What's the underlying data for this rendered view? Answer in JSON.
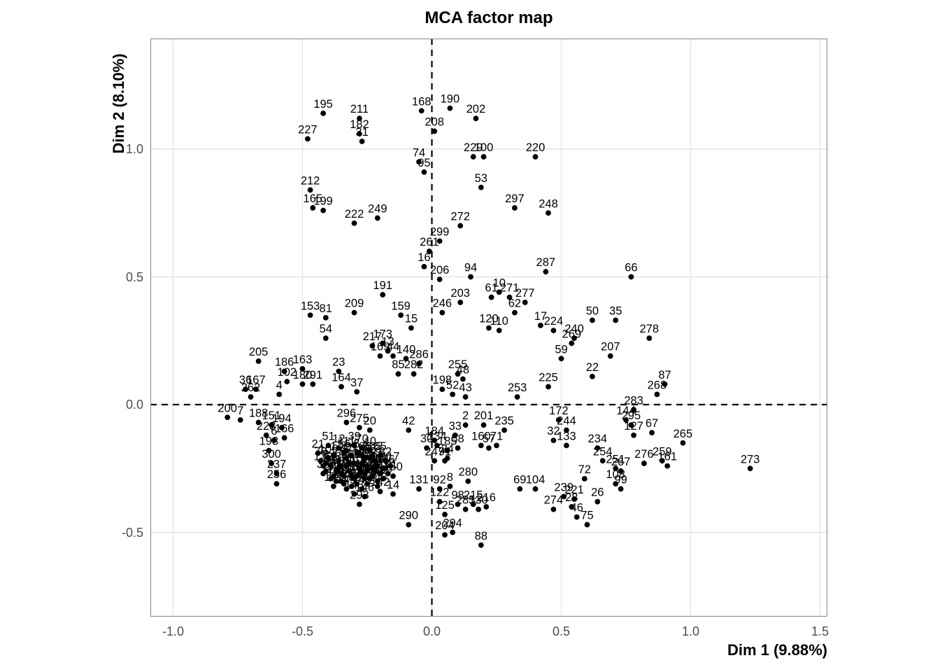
{
  "chart_data": {
    "type": "scatter",
    "title": "MCA factor map",
    "xlabel": "Dim 1 (9.88%)",
    "ylabel": "Dim 2 (8.10%)",
    "xlim": [
      -1.09,
      1.53
    ],
    "ylim": [
      -0.83,
      1.43
    ],
    "xticks": [
      -1.0,
      -0.5,
      0.0,
      0.5,
      1.0,
      1.5
    ],
    "xtick_labels": [
      "-1.0",
      "-0.5",
      "0.0",
      "0.5",
      "1.0",
      "1.5"
    ],
    "yticks": [
      -0.5,
      0.0,
      0.5,
      1.0
    ],
    "ytick_labels": [
      "-0.5",
      "0.0",
      "0.5",
      "1.0"
    ],
    "grid": "major",
    "legend": "none",
    "reference_lines": {
      "vertical_x": 0.0,
      "horizontal_y": 0.0,
      "style": "dashed",
      "color": "#000000"
    },
    "colors": {
      "point": "#000000",
      "label": "#000000",
      "grid": "#e4e4e4",
      "panel_border": "#8c8c8c",
      "tick_label": "#4d4d4d",
      "background": "#ffffff"
    },
    "points": [
      {
        "label": "195",
        "x": -0.42,
        "y": 1.14
      },
      {
        "label": "211",
        "x": -0.28,
        "y": 1.12
      },
      {
        "label": "182",
        "x": -0.28,
        "y": 1.06
      },
      {
        "label": "31",
        "x": -0.27,
        "y": 1.03
      },
      {
        "label": "227",
        "x": -0.48,
        "y": 1.04
      },
      {
        "label": "168",
        "x": -0.04,
        "y": 1.15
      },
      {
        "label": "208",
        "x": 0.01,
        "y": 1.07
      },
      {
        "label": "190",
        "x": 0.07,
        "y": 1.16
      },
      {
        "label": "202",
        "x": 0.17,
        "y": 1.12
      },
      {
        "label": "74",
        "x": -0.05,
        "y": 0.95
      },
      {
        "label": "95",
        "x": -0.03,
        "y": 0.91
      },
      {
        "label": "229",
        "x": 0.16,
        "y": 0.97
      },
      {
        "label": "100",
        "x": 0.2,
        "y": 0.97
      },
      {
        "label": "220",
        "x": 0.4,
        "y": 0.97
      },
      {
        "label": "53",
        "x": 0.19,
        "y": 0.85
      },
      {
        "label": "297",
        "x": 0.32,
        "y": 0.77
      },
      {
        "label": "248",
        "x": 0.45,
        "y": 0.75
      },
      {
        "label": "212",
        "x": -0.47,
        "y": 0.84
      },
      {
        "label": "165",
        "x": -0.46,
        "y": 0.77
      },
      {
        "label": "199",
        "x": -0.42,
        "y": 0.76
      },
      {
        "label": "222",
        "x": -0.3,
        "y": 0.71
      },
      {
        "label": "249",
        "x": -0.21,
        "y": 0.73
      },
      {
        "label": "272",
        "x": 0.11,
        "y": 0.7
      },
      {
        "label": "299",
        "x": 0.03,
        "y": 0.64
      },
      {
        "label": "261",
        "x": -0.01,
        "y": 0.6
      },
      {
        "label": "16",
        "x": -0.03,
        "y": 0.54
      },
      {
        "label": "206",
        "x": 0.03,
        "y": 0.49
      },
      {
        "label": "94",
        "x": 0.15,
        "y": 0.5
      },
      {
        "label": "10",
        "x": 0.26,
        "y": 0.44
      },
      {
        "label": "61",
        "x": 0.23,
        "y": 0.42
      },
      {
        "label": "271",
        "x": 0.3,
        "y": 0.42
      },
      {
        "label": "277",
        "x": 0.36,
        "y": 0.4
      },
      {
        "label": "287",
        "x": 0.44,
        "y": 0.52
      },
      {
        "label": "66",
        "x": 0.77,
        "y": 0.5
      },
      {
        "label": "191",
        "x": -0.19,
        "y": 0.43
      },
      {
        "label": "153",
        "x": -0.47,
        "y": 0.35
      },
      {
        "label": "81",
        "x": -0.41,
        "y": 0.34
      },
      {
        "label": "209",
        "x": -0.3,
        "y": 0.36
      },
      {
        "label": "159",
        "x": -0.12,
        "y": 0.35
      },
      {
        "label": "15",
        "x": -0.08,
        "y": 0.3
      },
      {
        "label": "54",
        "x": -0.41,
        "y": 0.26
      },
      {
        "label": "203",
        "x": 0.11,
        "y": 0.4
      },
      {
        "label": "246",
        "x": 0.04,
        "y": 0.36
      },
      {
        "label": "62",
        "x": 0.32,
        "y": 0.36
      },
      {
        "label": "120",
        "x": 0.22,
        "y": 0.3
      },
      {
        "label": "110",
        "x": 0.26,
        "y": 0.29
      },
      {
        "label": "50",
        "x": 0.62,
        "y": 0.33
      },
      {
        "label": "35",
        "x": 0.71,
        "y": 0.33
      },
      {
        "label": "17",
        "x": 0.42,
        "y": 0.31
      },
      {
        "label": "224",
        "x": 0.47,
        "y": 0.29
      },
      {
        "label": "240",
        "x": 0.55,
        "y": 0.26
      },
      {
        "label": "278",
        "x": 0.84,
        "y": 0.26
      },
      {
        "label": "207",
        "x": 0.69,
        "y": 0.19
      },
      {
        "label": "269",
        "x": 0.54,
        "y": 0.24
      },
      {
        "label": "59",
        "x": 0.5,
        "y": 0.18
      },
      {
        "label": "22",
        "x": 0.62,
        "y": 0.11
      },
      {
        "label": "87",
        "x": 0.9,
        "y": 0.08
      },
      {
        "label": "268",
        "x": 0.87,
        "y": 0.04
      },
      {
        "label": "283",
        "x": 0.78,
        "y": -0.02
      },
      {
        "label": "205",
        "x": -0.67,
        "y": 0.17
      },
      {
        "label": "217",
        "x": -0.23,
        "y": 0.23
      },
      {
        "label": "173",
        "x": -0.19,
        "y": 0.24
      },
      {
        "label": "13",
        "x": -0.17,
        "y": 0.21
      },
      {
        "label": "169",
        "x": -0.2,
        "y": 0.19
      },
      {
        "label": "186",
        "x": -0.57,
        "y": 0.13
      },
      {
        "label": "163",
        "x": -0.5,
        "y": 0.14
      },
      {
        "label": "23",
        "x": -0.36,
        "y": 0.13
      },
      {
        "label": "44",
        "x": -0.15,
        "y": 0.19
      },
      {
        "label": "140",
        "x": -0.1,
        "y": 0.18
      },
      {
        "label": "286",
        "x": -0.05,
        "y": 0.16
      },
      {
        "label": "282",
        "x": -0.07,
        "y": 0.12
      },
      {
        "label": "85",
        "x": -0.13,
        "y": 0.12
      },
      {
        "label": "102",
        "x": -0.56,
        "y": 0.09
      },
      {
        "label": "180",
        "x": -0.5,
        "y": 0.08
      },
      {
        "label": "291",
        "x": -0.46,
        "y": 0.08
      },
      {
        "label": "164",
        "x": -0.35,
        "y": 0.07
      },
      {
        "label": "37",
        "x": -0.29,
        "y": 0.05
      },
      {
        "label": "167",
        "x": -0.68,
        "y": 0.06
      },
      {
        "label": "4",
        "x": -0.59,
        "y": 0.04
      },
      {
        "label": "36",
        "x": -0.72,
        "y": 0.06
      },
      {
        "label": "262",
        "x": -0.7,
        "y": 0.03
      },
      {
        "label": "255",
        "x": 0.1,
        "y": 0.12
      },
      {
        "label": "198",
        "x": 0.04,
        "y": 0.06
      },
      {
        "label": "48",
        "x": 0.12,
        "y": 0.1
      },
      {
        "label": "52",
        "x": 0.08,
        "y": 0.04
      },
      {
        "label": "43",
        "x": 0.13,
        "y": 0.03
      },
      {
        "label": "253",
        "x": 0.33,
        "y": 0.03
      },
      {
        "label": "225",
        "x": 0.45,
        "y": 0.07
      },
      {
        "label": "200",
        "x": -0.79,
        "y": -0.05
      },
      {
        "label": "7",
        "x": -0.74,
        "y": -0.06
      },
      {
        "label": "188",
        "x": -0.67,
        "y": -0.07
      },
      {
        "label": "151",
        "x": -0.62,
        "y": -0.08
      },
      {
        "label": "194",
        "x": -0.58,
        "y": -0.09
      },
      {
        "label": "223",
        "x": -0.64,
        "y": -0.12
      },
      {
        "label": "166",
        "x": -0.57,
        "y": -0.13
      },
      {
        "label": "6",
        "x": -0.61,
        "y": -0.14
      },
      {
        "label": "193",
        "x": -0.63,
        "y": -0.18
      },
      {
        "label": "300",
        "x": -0.62,
        "y": -0.23
      },
      {
        "label": "237",
        "x": -0.6,
        "y": -0.27
      },
      {
        "label": "256",
        "x": -0.6,
        "y": -0.31
      },
      {
        "label": "296",
        "x": -0.33,
        "y": -0.07
      },
      {
        "label": "275",
        "x": -0.28,
        "y": -0.09
      },
      {
        "label": "20",
        "x": -0.24,
        "y": -0.1
      },
      {
        "label": "42",
        "x": -0.09,
        "y": -0.1
      },
      {
        "label": "30",
        "x": -0.02,
        "y": -0.17
      },
      {
        "label": "247",
        "x": 0.01,
        "y": -0.22
      },
      {
        "label": "24",
        "x": 0.06,
        "y": -0.21
      },
      {
        "label": "2",
        "x": 0.13,
        "y": -0.08
      },
      {
        "label": "201",
        "x": 0.2,
        "y": -0.08
      },
      {
        "label": "33",
        "x": 0.09,
        "y": -0.12
      },
      {
        "label": "235",
        "x": 0.28,
        "y": -0.1
      },
      {
        "label": "184",
        "x": 0.01,
        "y": -0.14
      },
      {
        "label": "134",
        "x": 0.02,
        "y": -0.16
      },
      {
        "label": "58",
        "x": 0.1,
        "y": -0.17
      },
      {
        "label": "185",
        "x": 0.06,
        "y": -0.18
      },
      {
        "label": "91",
        "x": 0.05,
        "y": -0.22
      },
      {
        "label": "160",
        "x": 0.19,
        "y": -0.16
      },
      {
        "label": "57",
        "x": 0.22,
        "y": -0.17
      },
      {
        "label": "71",
        "x": 0.25,
        "y": -0.16
      },
      {
        "label": "32",
        "x": 0.47,
        "y": -0.14
      },
      {
        "label": "133",
        "x": 0.52,
        "y": -0.16
      },
      {
        "label": "234",
        "x": 0.64,
        "y": -0.17
      },
      {
        "label": "172",
        "x": 0.49,
        "y": -0.06
      },
      {
        "label": "244",
        "x": 0.52,
        "y": -0.1
      },
      {
        "label": "144",
        "x": 0.75,
        "y": -0.06
      },
      {
        "label": "295",
        "x": 0.77,
        "y": -0.08
      },
      {
        "label": "127",
        "x": 0.78,
        "y": -0.12
      },
      {
        "label": "67",
        "x": 0.85,
        "y": -0.11
      },
      {
        "label": "265",
        "x": 0.97,
        "y": -0.15
      },
      {
        "label": "251",
        "x": 0.71,
        "y": -0.25
      },
      {
        "label": "254",
        "x": 0.66,
        "y": -0.22
      },
      {
        "label": "276",
        "x": 0.82,
        "y": -0.23
      },
      {
        "label": "259",
        "x": 0.89,
        "y": -0.22
      },
      {
        "label": "161",
        "x": 0.91,
        "y": -0.24
      },
      {
        "label": "267",
        "x": 0.73,
        "y": -0.26
      },
      {
        "label": "273",
        "x": 1.23,
        "y": -0.25
      },
      {
        "label": "108",
        "x": 0.71,
        "y": -0.31
      },
      {
        "label": "99",
        "x": 0.73,
        "y": -0.33
      },
      {
        "label": "72",
        "x": 0.59,
        "y": -0.29
      },
      {
        "label": "239",
        "x": 0.51,
        "y": -0.36
      },
      {
        "label": "221",
        "x": 0.55,
        "y": -0.37
      },
      {
        "label": "26",
        "x": 0.64,
        "y": -0.38
      },
      {
        "label": "274",
        "x": 0.47,
        "y": -0.41
      },
      {
        "label": "28",
        "x": 0.54,
        "y": -0.4
      },
      {
        "label": "46",
        "x": 0.56,
        "y": -0.44
      },
      {
        "label": "75",
        "x": 0.6,
        "y": -0.47
      },
      {
        "label": "69",
        "x": 0.34,
        "y": -0.33
      },
      {
        "label": "104",
        "x": 0.4,
        "y": -0.33
      },
      {
        "label": "125",
        "x": 0.05,
        "y": -0.43
      },
      {
        "label": "130",
        "x": 0.18,
        "y": -0.41
      },
      {
        "label": "88",
        "x": 0.19,
        "y": -0.55
      },
      {
        "label": "294",
        "x": 0.08,
        "y": -0.5
      },
      {
        "label": "204",
        "x": 0.05,
        "y": -0.51
      },
      {
        "label": "290",
        "x": -0.09,
        "y": -0.47
      },
      {
        "label": "293",
        "x": -0.28,
        "y": -0.39
      },
      {
        "label": "122",
        "x": 0.03,
        "y": -0.38
      },
      {
        "label": "98",
        "x": 0.1,
        "y": -0.39
      },
      {
        "label": "215",
        "x": 0.16,
        "y": -0.39
      },
      {
        "label": "216",
        "x": 0.21,
        "y": -0.4
      },
      {
        "label": "285",
        "x": 0.13,
        "y": -0.41
      },
      {
        "label": "92",
        "x": 0.03,
        "y": -0.33
      },
      {
        "label": "8",
        "x": 0.07,
        "y": -0.32
      },
      {
        "label": "280",
        "x": 0.14,
        "y": -0.3
      },
      {
        "label": "131",
        "x": -0.05,
        "y": -0.33
      },
      {
        "label": "14",
        "x": -0.15,
        "y": -0.35
      },
      {
        "label": "142",
        "x": -0.2,
        "y": -0.34
      },
      {
        "label": "146",
        "x": -0.26,
        "y": -0.36
      },
      {
        "label": "143",
        "x": -0.3,
        "y": -0.35
      },
      {
        "label": "1",
        "x": -0.38,
        "y": -0.2
      },
      {
        "label": "3",
        "x": -0.33,
        "y": -0.24
      },
      {
        "label": "5",
        "x": -0.29,
        "y": -0.19
      },
      {
        "label": "9",
        "x": -0.41,
        "y": -0.23
      },
      {
        "label": "11",
        "x": -0.25,
        "y": -0.26
      },
      {
        "label": "12",
        "x": -0.36,
        "y": -0.17
      },
      {
        "label": "18",
        "x": -0.31,
        "y": -0.28
      },
      {
        "label": "19",
        "x": -0.22,
        "y": -0.22
      },
      {
        "label": "21",
        "x": -0.44,
        "y": -0.19
      },
      {
        "label": "25",
        "x": -0.27,
        "y": -0.23
      },
      {
        "label": "29",
        "x": -0.35,
        "y": -0.3
      },
      {
        "label": "34",
        "x": -0.19,
        "y": -0.25
      },
      {
        "label": "38",
        "x": -0.42,
        "y": -0.27
      },
      {
        "label": "39",
        "x": -0.3,
        "y": -0.16
      },
      {
        "label": "40",
        "x": -0.24,
        "y": -0.18
      },
      {
        "label": "41",
        "x": -0.37,
        "y": -0.26
      },
      {
        "label": "45",
        "x": -0.21,
        "y": -0.3
      },
      {
        "label": "47",
        "x": -0.33,
        "y": -0.21
      },
      {
        "label": "49",
        "x": -0.28,
        "y": -0.27
      },
      {
        "label": "51",
        "x": -0.4,
        "y": -0.16
      },
      {
        "label": "55",
        "x": -0.26,
        "y": -0.21
      },
      {
        "label": "56",
        "x": -0.34,
        "y": -0.19
      },
      {
        "label": "60",
        "x": -0.23,
        "y": -0.28
      },
      {
        "label": "63",
        "x": -0.39,
        "y": -0.24
      },
      {
        "label": "65",
        "x": -0.2,
        "y": -0.2
      },
      {
        "label": "68",
        "x": -0.32,
        "y": -0.26
      },
      {
        "label": "70",
        "x": -0.27,
        "y": -0.17
      },
      {
        "label": "76",
        "x": -0.43,
        "y": -0.22
      },
      {
        "label": "77",
        "x": -0.25,
        "y": -0.24
      },
      {
        "label": "78",
        "x": -0.36,
        "y": -0.22
      },
      {
        "label": "79",
        "x": -0.22,
        "y": -0.26
      },
      {
        "label": "80",
        "x": -0.3,
        "y": -0.23
      },
      {
        "label": "82",
        "x": -0.18,
        "y": -0.22
      },
      {
        "label": "83",
        "x": -0.41,
        "y": -0.26
      },
      {
        "label": "84",
        "x": -0.29,
        "y": -0.31
      },
      {
        "label": "86",
        "x": -0.24,
        "y": -0.21
      },
      {
        "label": "89",
        "x": -0.35,
        "y": -0.24
      },
      {
        "label": "90",
        "x": -0.21,
        "y": -0.24
      },
      {
        "label": "93",
        "x": -0.38,
        "y": -0.28
      },
      {
        "label": "96",
        "x": -0.26,
        "y": -0.29
      },
      {
        "label": "97",
        "x": -0.31,
        "y": -0.2
      },
      {
        "label": "101",
        "x": -0.17,
        "y": -0.27
      },
      {
        "label": "103",
        "x": -0.34,
        "y": -0.28
      },
      {
        "label": "105",
        "x": -0.23,
        "y": -0.2
      },
      {
        "label": "106",
        "x": -0.4,
        "y": -0.21
      },
      {
        "label": "107",
        "x": -0.28,
        "y": -0.25
      },
      {
        "label": "109",
        "x": -0.19,
        "y": -0.29
      },
      {
        "label": "111",
        "x": -0.33,
        "y": -0.18
      },
      {
        "label": "112",
        "x": -0.26,
        "y": -0.27
      },
      {
        "label": "114",
        "x": -0.37,
        "y": -0.3
      },
      {
        "label": "115",
        "x": -0.22,
        "y": -0.24
      },
      {
        "label": "116",
        "x": -0.3,
        "y": -0.29
      },
      {
        "label": "117",
        "x": -0.16,
        "y": -0.24
      },
      {
        "label": "118",
        "x": -0.36,
        "y": -0.25
      },
      {
        "label": "119",
        "x": -0.25,
        "y": -0.31
      },
      {
        "label": "121",
        "x": -0.32,
        "y": -0.23
      },
      {
        "label": "123",
        "x": -0.2,
        "y": -0.27
      },
      {
        "label": "124",
        "x": -0.39,
        "y": -0.29
      },
      {
        "label": "126",
        "x": -0.27,
        "y": -0.2
      },
      {
        "label": "128",
        "x": -0.34,
        "y": -0.31
      },
      {
        "label": "129",
        "x": -0.23,
        "y": -0.25
      },
      {
        "label": "132",
        "x": -0.42,
        "y": -0.24
      },
      {
        "label": "135",
        "x": -0.29,
        "y": -0.28
      },
      {
        "label": "136",
        "x": -0.18,
        "y": -0.25
      },
      {
        "label": "137",
        "x": -0.35,
        "y": -0.27
      },
      {
        "label": "138",
        "x": -0.24,
        "y": -0.29
      },
      {
        "label": "139",
        "x": -0.31,
        "y": -0.32
      },
      {
        "label": "145",
        "x": -0.21,
        "y": -0.32
      },
      {
        "label": "147",
        "x": -0.38,
        "y": -0.32
      },
      {
        "label": "148",
        "x": -0.27,
        "y": -0.33
      },
      {
        "label": "149",
        "x": -0.33,
        "y": -0.33
      },
      {
        "label": "150",
        "x": -0.15,
        "y": -0.28
      }
    ]
  }
}
